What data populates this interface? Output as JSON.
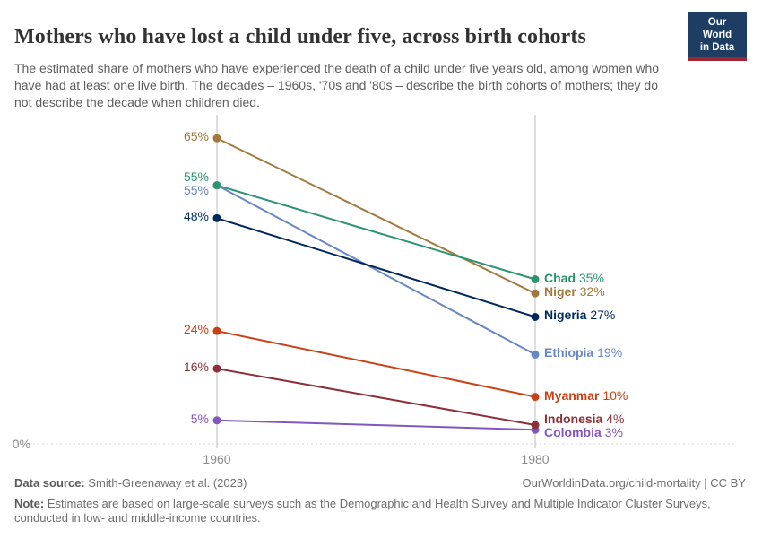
{
  "header": {
    "title": "Mothers who have lost a child under five, across birth cohorts",
    "subtitle": "The estimated share of mothers who have experienced the death of a child under five years old, among women who have had at least one live birth. The decades – 1960s, '70s and '80s – describe the birth cohorts of mothers; they do not describe the decade when children died.",
    "logo": {
      "line1": "Our World",
      "line2": "in Data",
      "bg_color": "#1d3d63",
      "accent_color": "#9e2631"
    }
  },
  "chart_data": {
    "type": "line",
    "variant": "slope",
    "x": [
      1960,
      1980
    ],
    "x_tick_labels": [
      "1960",
      "1980"
    ],
    "baseline_label": "0%",
    "value_suffix": "%",
    "ylim": [
      0,
      70
    ],
    "grid": "baseline-dashed-only",
    "legend_position": "inline-end-labels",
    "series": [
      {
        "name": "Niger",
        "values": [
          65,
          32
        ],
        "color": "#a2793d"
      },
      {
        "name": "Chad",
        "values": [
          55,
          35
        ],
        "color": "#2c9370"
      },
      {
        "name": "Ethiopia",
        "values": [
          55,
          19
        ],
        "color": "#6886c6"
      },
      {
        "name": "Nigeria",
        "values": [
          48,
          27
        ],
        "color": "#00295b"
      },
      {
        "name": "Myanmar",
        "values": [
          24,
          10
        ],
        "color": "#c84015"
      },
      {
        "name": "Indonesia",
        "values": [
          16,
          4
        ],
        "color": "#8c2f39"
      },
      {
        "name": "Colombia",
        "values": [
          5,
          3
        ],
        "color": "#8455be"
      }
    ]
  },
  "footer": {
    "data_source_label": "Data source:",
    "data_source": "Smith-Greenaway et al. (2023)",
    "credit": "OurWorldinData.org/child-mortality | CC BY",
    "note_label": "Note:",
    "note": "Estimates are based on large-scale surveys such as the Demographic and Health Survey and Multiple Indicator Cluster Surveys, conducted in low- and middle-income countries."
  }
}
